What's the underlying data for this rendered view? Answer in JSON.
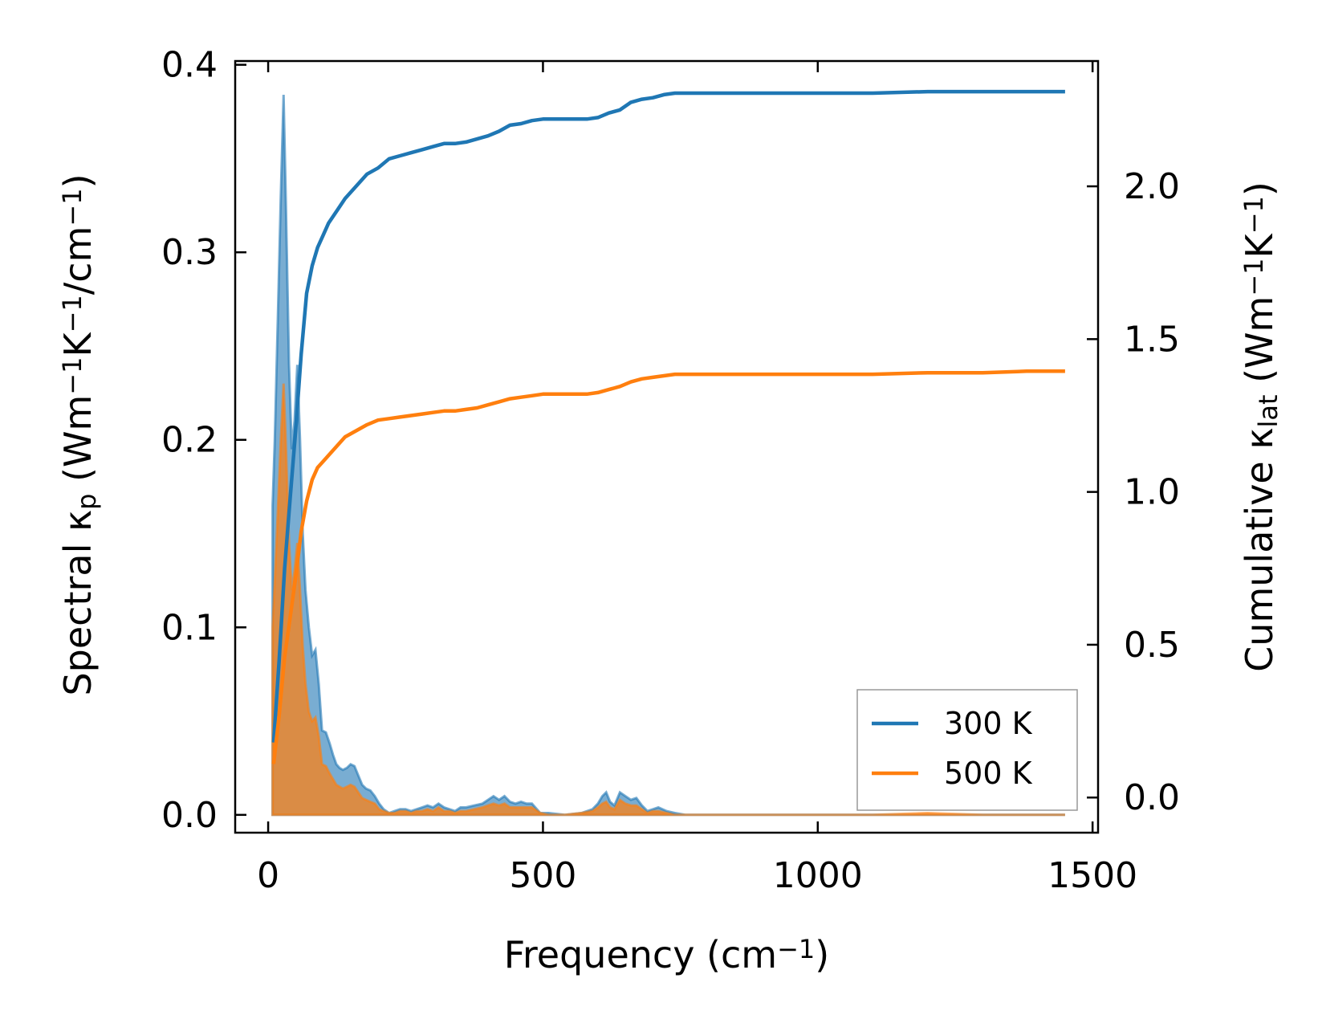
{
  "chart_data": {
    "type": "line",
    "x_axis": {
      "label_main": "Frequency (cm",
      "label_sup": "−1",
      "label_end": ")",
      "range": [
        -60,
        1510
      ],
      "ticks": [
        0,
        500,
        1000,
        1500
      ],
      "tick_labels": [
        "0",
        "500",
        "1000",
        "1500"
      ]
    },
    "y_left": {
      "label_parts": [
        {
          "t": "Spectral κ",
          "k": "n"
        },
        {
          "t": "p",
          "k": "sub"
        },
        {
          "t": " (Wm",
          "k": "n"
        },
        {
          "t": "−1",
          "k": "sup"
        },
        {
          "t": "K",
          "k": "n"
        },
        {
          "t": "−1",
          "k": "sup"
        },
        {
          "t": "/cm",
          "k": "n"
        },
        {
          "t": "−1",
          "k": "sup"
        },
        {
          "t": ")",
          "k": "n"
        }
      ],
      "range": [
        -0.0095,
        0.402
      ],
      "ticks": [
        0.0,
        0.1,
        0.2,
        0.3,
        0.4
      ],
      "tick_labels": [
        "0.0",
        "0.1",
        "0.2",
        "0.3",
        "0.4"
      ]
    },
    "y_right": {
      "label_parts": [
        {
          "t": "Cumulative κ",
          "k": "n"
        },
        {
          "t": "lat",
          "k": "sub"
        },
        {
          "t": " (Wm",
          "k": "n"
        },
        {
          "t": "−1",
          "k": "sup"
        },
        {
          "t": "K",
          "k": "n"
        },
        {
          "t": "−1",
          "k": "sup"
        },
        {
          "t": ")",
          "k": "n"
        }
      ],
      "range": [
        -0.115,
        2.41
      ],
      "ticks": [
        0.0,
        0.5,
        1.0,
        1.5,
        2.0
      ],
      "tick_labels": [
        "0.0",
        "0.5",
        "1.0",
        "1.5",
        "2.0"
      ]
    },
    "legend": {
      "placement": "lower-right",
      "entries": [
        "300 K",
        "500 K"
      ]
    },
    "grid": false,
    "series": [
      {
        "name": "300 K",
        "color": "#1f77b4",
        "cumulative": [
          [
            10,
            0.18
          ],
          [
            20,
            0.45
          ],
          [
            30,
            0.75
          ],
          [
            40,
            0.98
          ],
          [
            50,
            1.2
          ],
          [
            60,
            1.45
          ],
          [
            70,
            1.65
          ],
          [
            80,
            1.74
          ],
          [
            90,
            1.8
          ],
          [
            100,
            1.84
          ],
          [
            110,
            1.88
          ],
          [
            125,
            1.92
          ],
          [
            140,
            1.96
          ],
          [
            160,
            2.0
          ],
          [
            180,
            2.04
          ],
          [
            200,
            2.06
          ],
          [
            220,
            2.09
          ],
          [
            240,
            2.1
          ],
          [
            260,
            2.11
          ],
          [
            280,
            2.12
          ],
          [
            300,
            2.13
          ],
          [
            320,
            2.14
          ],
          [
            340,
            2.14
          ],
          [
            360,
            2.145
          ],
          [
            380,
            2.155
          ],
          [
            400,
            2.165
          ],
          [
            420,
            2.18
          ],
          [
            440,
            2.2
          ],
          [
            460,
            2.205
          ],
          [
            480,
            2.215
          ],
          [
            500,
            2.22
          ],
          [
            550,
            2.22
          ],
          [
            580,
            2.22
          ],
          [
            600,
            2.225
          ],
          [
            620,
            2.24
          ],
          [
            640,
            2.25
          ],
          [
            660,
            2.275
          ],
          [
            680,
            2.285
          ],
          [
            700,
            2.29
          ],
          [
            720,
            2.3
          ],
          [
            740,
            2.305
          ],
          [
            800,
            2.305
          ],
          [
            1000,
            2.305
          ],
          [
            1100,
            2.305
          ],
          [
            1200,
            2.31
          ],
          [
            1300,
            2.31
          ],
          [
            1450,
            2.31
          ]
        ],
        "spectral": [
          [
            8,
            0.165
          ],
          [
            12,
            0.2
          ],
          [
            18,
            0.27
          ],
          [
            23,
            0.33
          ],
          [
            28,
            0.384
          ],
          [
            32,
            0.33
          ],
          [
            38,
            0.24
          ],
          [
            43,
            0.195
          ],
          [
            48,
            0.21
          ],
          [
            53,
            0.24
          ],
          [
            58,
            0.2
          ],
          [
            63,
            0.15
          ],
          [
            68,
            0.12
          ],
          [
            74,
            0.1
          ],
          [
            80,
            0.085
          ],
          [
            86,
            0.088
          ],
          [
            92,
            0.07
          ],
          [
            98,
            0.045
          ],
          [
            105,
            0.044
          ],
          [
            112,
            0.038
          ],
          [
            118,
            0.032
          ],
          [
            124,
            0.027
          ],
          [
            130,
            0.025
          ],
          [
            136,
            0.024
          ],
          [
            143,
            0.025
          ],
          [
            150,
            0.027
          ],
          [
            157,
            0.026
          ],
          [
            164,
            0.021
          ],
          [
            171,
            0.016
          ],
          [
            178,
            0.014
          ],
          [
            186,
            0.013
          ],
          [
            194,
            0.01
          ],
          [
            202,
            0.006
          ],
          [
            210,
            0.003
          ],
          [
            220,
            0.001
          ],
          [
            230,
            0.002
          ],
          [
            240,
            0.003
          ],
          [
            250,
            0.003
          ],
          [
            260,
            0.002
          ],
          [
            270,
            0.003
          ],
          [
            280,
            0.004
          ],
          [
            290,
            0.005
          ],
          [
            300,
            0.004
          ],
          [
            310,
            0.006
          ],
          [
            320,
            0.004
          ],
          [
            330,
            0.003
          ],
          [
            340,
            0.002
          ],
          [
            350,
            0.004
          ],
          [
            360,
            0.004
          ],
          [
            375,
            0.005
          ],
          [
            390,
            0.006
          ],
          [
            400,
            0.008
          ],
          [
            410,
            0.01
          ],
          [
            420,
            0.008
          ],
          [
            430,
            0.01
          ],
          [
            440,
            0.007
          ],
          [
            450,
            0.006
          ],
          [
            460,
            0.007
          ],
          [
            470,
            0.006
          ],
          [
            480,
            0.006
          ],
          [
            495,
            0.001
          ],
          [
            510,
            0.001
          ],
          [
            540,
            0.0
          ],
          [
            570,
            0.001
          ],
          [
            590,
            0.003
          ],
          [
            600,
            0.006
          ],
          [
            608,
            0.01
          ],
          [
            615,
            0.012
          ],
          [
            622,
            0.007
          ],
          [
            630,
            0.005
          ],
          [
            640,
            0.012
          ],
          [
            650,
            0.01
          ],
          [
            660,
            0.008
          ],
          [
            670,
            0.009
          ],
          [
            680,
            0.005
          ],
          [
            690,
            0.002
          ],
          [
            700,
            0.003
          ],
          [
            710,
            0.004
          ],
          [
            725,
            0.002
          ],
          [
            740,
            0.001
          ],
          [
            760,
            0.0
          ],
          [
            800,
            0.0
          ],
          [
            900,
            0.0
          ],
          [
            950,
            0.0
          ],
          [
            1000,
            0.0
          ],
          [
            1100,
            0.0
          ],
          [
            1200,
            0.0
          ],
          [
            1300,
            0.0
          ],
          [
            1450,
            0.0
          ]
        ]
      },
      {
        "name": "500 K",
        "color": "#ff7f0e",
        "cumulative": [
          [
            10,
            0.11
          ],
          [
            20,
            0.27
          ],
          [
            30,
            0.46
          ],
          [
            40,
            0.59
          ],
          [
            50,
            0.72
          ],
          [
            60,
            0.87
          ],
          [
            70,
            0.97
          ],
          [
            80,
            1.04
          ],
          [
            90,
            1.08
          ],
          [
            100,
            1.1
          ],
          [
            110,
            1.12
          ],
          [
            125,
            1.15
          ],
          [
            140,
            1.18
          ],
          [
            160,
            1.2
          ],
          [
            180,
            1.22
          ],
          [
            200,
            1.235
          ],
          [
            220,
            1.24
          ],
          [
            240,
            1.245
          ],
          [
            260,
            1.25
          ],
          [
            280,
            1.255
          ],
          [
            300,
            1.26
          ],
          [
            320,
            1.265
          ],
          [
            340,
            1.265
          ],
          [
            360,
            1.27
          ],
          [
            380,
            1.275
          ],
          [
            400,
            1.285
          ],
          [
            420,
            1.295
          ],
          [
            440,
            1.305
          ],
          [
            460,
            1.31
          ],
          [
            480,
            1.315
          ],
          [
            500,
            1.32
          ],
          [
            550,
            1.32
          ],
          [
            580,
            1.32
          ],
          [
            600,
            1.325
          ],
          [
            620,
            1.335
          ],
          [
            640,
            1.345
          ],
          [
            660,
            1.36
          ],
          [
            680,
            1.37
          ],
          [
            700,
            1.375
          ],
          [
            720,
            1.38
          ],
          [
            740,
            1.385
          ],
          [
            800,
            1.385
          ],
          [
            1000,
            1.385
          ],
          [
            1100,
            1.385
          ],
          [
            1200,
            1.39
          ],
          [
            1300,
            1.39
          ],
          [
            1380,
            1.395
          ],
          [
            1450,
            1.395
          ]
        ],
        "spectral": [
          [
            8,
            0.1
          ],
          [
            12,
            0.125
          ],
          [
            18,
            0.165
          ],
          [
            23,
            0.2
          ],
          [
            28,
            0.23
          ],
          [
            32,
            0.2
          ],
          [
            38,
            0.145
          ],
          [
            43,
            0.12
          ],
          [
            48,
            0.13
          ],
          [
            53,
            0.145
          ],
          [
            58,
            0.12
          ],
          [
            63,
            0.09
          ],
          [
            68,
            0.07
          ],
          [
            74,
            0.055
          ],
          [
            80,
            0.05
          ],
          [
            86,
            0.052
          ],
          [
            92,
            0.042
          ],
          [
            98,
            0.027
          ],
          [
            105,
            0.026
          ],
          [
            112,
            0.022
          ],
          [
            118,
            0.019
          ],
          [
            124,
            0.016
          ],
          [
            130,
            0.015
          ],
          [
            136,
            0.014
          ],
          [
            143,
            0.015
          ],
          [
            150,
            0.016
          ],
          [
            157,
            0.015
          ],
          [
            164,
            0.012
          ],
          [
            171,
            0.009
          ],
          [
            178,
            0.008
          ],
          [
            186,
            0.007
          ],
          [
            194,
            0.006
          ],
          [
            202,
            0.003
          ],
          [
            210,
            0.002
          ],
          [
            220,
            0.001
          ],
          [
            230,
            0.001
          ],
          [
            240,
            0.002
          ],
          [
            250,
            0.002
          ],
          [
            260,
            0.001
          ],
          [
            270,
            0.002
          ],
          [
            280,
            0.002
          ],
          [
            290,
            0.003
          ],
          [
            300,
            0.002
          ],
          [
            310,
            0.004
          ],
          [
            320,
            0.002
          ],
          [
            330,
            0.002
          ],
          [
            340,
            0.001
          ],
          [
            350,
            0.002
          ],
          [
            360,
            0.002
          ],
          [
            375,
            0.003
          ],
          [
            390,
            0.004
          ],
          [
            400,
            0.005
          ],
          [
            410,
            0.006
          ],
          [
            420,
            0.005
          ],
          [
            430,
            0.006
          ],
          [
            440,
            0.004
          ],
          [
            450,
            0.004
          ],
          [
            460,
            0.004
          ],
          [
            470,
            0.004
          ],
          [
            480,
            0.004
          ],
          [
            495,
            0.001
          ],
          [
            510,
            0.0
          ],
          [
            540,
            0.0
          ],
          [
            570,
            0.001
          ],
          [
            590,
            0.002
          ],
          [
            600,
            0.004
          ],
          [
            608,
            0.006
          ],
          [
            615,
            0.007
          ],
          [
            622,
            0.004
          ],
          [
            630,
            0.003
          ],
          [
            640,
            0.008
          ],
          [
            650,
            0.006
          ],
          [
            660,
            0.005
          ],
          [
            670,
            0.005
          ],
          [
            680,
            0.003
          ],
          [
            690,
            0.001
          ],
          [
            700,
            0.002
          ],
          [
            710,
            0.002
          ],
          [
            725,
            0.001
          ],
          [
            740,
            0.0
          ],
          [
            760,
            0.0
          ],
          [
            800,
            0.0
          ],
          [
            900,
            0.0
          ],
          [
            950,
            0.0
          ],
          [
            1000,
            0.0
          ],
          [
            1100,
            0.0
          ],
          [
            1200,
            0.001
          ],
          [
            1300,
            0.0
          ],
          [
            1450,
            0.0
          ]
        ]
      }
    ]
  }
}
